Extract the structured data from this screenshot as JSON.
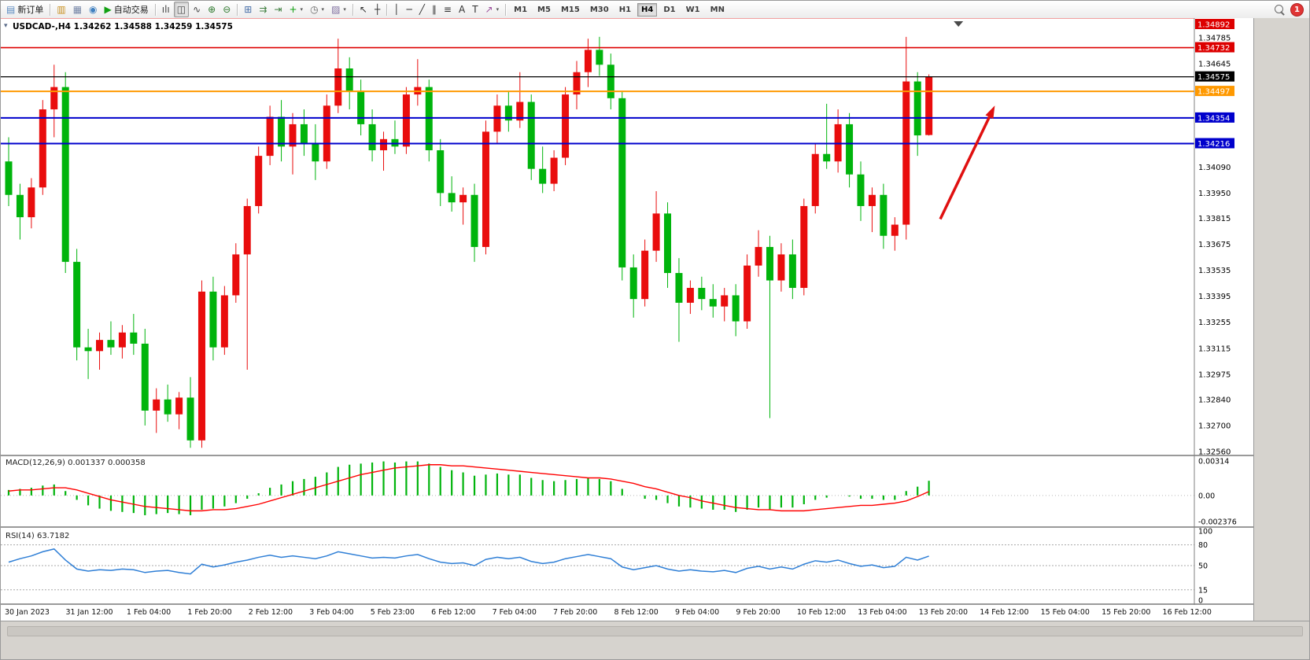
{
  "window": {
    "title": "USDCAD-,H4 1.34262 1.34588 1.34259 1.34575",
    "one_click_glyph": "▾"
  },
  "toolbar": {
    "timeframes": [
      "M1",
      "M5",
      "M15",
      "M30",
      "H1",
      "H4",
      "D1",
      "W1",
      "MN"
    ],
    "active_timeframe": "H4",
    "notification_count": "1",
    "items": [
      {
        "t": "btn",
        "name": "new-order-button",
        "icon": "new-order-icon",
        "glyph": "▤",
        "gc": "#5a8ac0",
        "label": "新订单"
      },
      {
        "t": "sep"
      },
      {
        "t": "btn",
        "name": "market-watch-button",
        "icon": "market-watch-icon",
        "glyph": "▥",
        "gc": "#c89020"
      },
      {
        "t": "btn",
        "name": "data-window-button",
        "icon": "data-window-icon",
        "glyph": "▦",
        "gc": "#7888a8"
      },
      {
        "t": "btn",
        "name": "navigator-button",
        "icon": "navigator-icon",
        "glyph": "◉",
        "gc": "#4080c0"
      },
      {
        "t": "btn",
        "name": "autotrading-button",
        "icon": "autotrading-play-icon",
        "glyph": "▶",
        "gc": "#12a012",
        "label": "自动交易"
      },
      {
        "t": "sep"
      },
      {
        "t": "btn",
        "name": "bar-chart-button",
        "icon": "bar-chart-icon",
        "glyph": "ılı",
        "gc": "#444444"
      },
      {
        "t": "btn",
        "name": "candlestick-chart-button",
        "icon": "candlestick-chart-icon",
        "glyph": "◫",
        "gc": "#444444",
        "active": true
      },
      {
        "t": "btn",
        "name": "line-chart-button",
        "icon": "line-chart-icon",
        "glyph": "∿",
        "gc": "#444444"
      },
      {
        "t": "btn",
        "name": "zoom-in-button",
        "icon": "zoom-in-icon",
        "glyph": "⊕",
        "gc": "#2f7a2f"
      },
      {
        "t": "btn",
        "name": "zoom-out-button",
        "icon": "zoom-out-icon",
        "glyph": "⊖",
        "gc": "#2f7a2f"
      },
      {
        "t": "sep"
      },
      {
        "t": "btn",
        "name": "tile-windows-button",
        "icon": "tile-windows-icon",
        "glyph": "⊞",
        "gc": "#486fa8"
      },
      {
        "t": "btn",
        "name": "auto-scroll-button",
        "icon": "auto-scroll-icon",
        "glyph": "⇉",
        "gc": "#3f7f3f"
      },
      {
        "t": "btn",
        "name": "chart-shift-button",
        "icon": "chart-shift-icon",
        "glyph": "⇥",
        "gc": "#3f7f3f"
      },
      {
        "t": "btn",
        "name": "indicators-button",
        "icon": "add-indicator-icon",
        "glyph": "+",
        "gc": "#0f9f0f",
        "caret": true
      },
      {
        "t": "btn",
        "name": "periods-button",
        "icon": "clock-icon",
        "glyph": "◷",
        "gc": "#666666",
        "caret": true
      },
      {
        "t": "btn",
        "name": "templates-button",
        "icon": "template-icon",
        "glyph": "▨",
        "gc": "#8070a0",
        "caret": true
      },
      {
        "t": "sep"
      },
      {
        "t": "btn",
        "name": "cursor-button",
        "icon": "cursor-icon",
        "glyph": "↖",
        "gc": "#303030"
      },
      {
        "t": "btn",
        "name": "crosshair-button",
        "icon": "crosshair-icon",
        "glyph": "┼",
        "gc": "#303030"
      },
      {
        "t": "sep"
      },
      {
        "t": "btn",
        "name": "vertical-line-button",
        "icon": "vertical-line-icon",
        "glyph": "│",
        "gc": "#303030"
      },
      {
        "t": "btn",
        "name": "horizontal-line-button",
        "icon": "horizontal-line-icon",
        "glyph": "─",
        "gc": "#303030"
      },
      {
        "t": "btn",
        "name": "trendline-button",
        "icon": "trendline-icon",
        "glyph": "╱",
        "gc": "#303030"
      },
      {
        "t": "btn",
        "name": "channel-button",
        "icon": "channel-icon",
        "glyph": "∥",
        "gc": "#303030"
      },
      {
        "t": "btn",
        "name": "fibonacci-button",
        "icon": "fibonacci-icon",
        "glyph": "≡",
        "gc": "#303030"
      },
      {
        "t": "btn",
        "name": "text-button",
        "icon": "text-icon",
        "glyph": "A",
        "gc": "#303030"
      },
      {
        "t": "btn",
        "name": "text-label-button",
        "icon": "text-label-icon",
        "glyph": "T",
        "gc": "#303030"
      },
      {
        "t": "btn",
        "name": "arrows-button",
        "icon": "arrow-objects-icon",
        "glyph": "↗",
        "gc": "#9a4a9a",
        "caret": true
      },
      {
        "t": "sep"
      }
    ]
  },
  "chart_data": {
    "type": "candlestick",
    "symbol": "USDCAD-",
    "period": "H4",
    "ohlc": {
      "open": "1.34262",
      "high": "1.34588",
      "low": "1.34259",
      "close": "1.34575"
    },
    "colors": {
      "bull": "#e90d0d",
      "bear": "#00b40c",
      "macd_hist": "#00b40c",
      "macd_signal": "#ff0000",
      "rsi": "#2f7fd6",
      "hline_red": "#dd0000",
      "hline_orange": "#ff9900",
      "hline_blue": "#0000cc",
      "hline_black": "#000000"
    },
    "price_axis": {
      "labels": [
        "1.34785",
        "1.34645",
        "1.34505",
        "1.34365",
        "1.34225",
        "1.34090",
        "1.33950",
        "1.33815",
        "1.33675",
        "1.33535",
        "1.33395",
        "1.33255",
        "1.33115",
        "1.32975",
        "1.32840",
        "1.32700",
        "1.32560"
      ]
    },
    "hlines": [
      {
        "price": 1.34892,
        "color": "#dd0000",
        "width": 1.4
      },
      {
        "price": 1.34732,
        "color": "#dd0000",
        "width": 1.6
      },
      {
        "price": 1.34575,
        "color": "#000000",
        "width": 1.2
      },
      {
        "price": 1.34497,
        "color": "#ff9900",
        "width": 2
      },
      {
        "price": 1.34354,
        "color": "#0000cc",
        "width": 2
      },
      {
        "price": 1.34216,
        "color": "#0000cc",
        "width": 2
      }
    ],
    "candles": [
      [
        1.3412,
        1.3425,
        1.3388,
        1.3394
      ],
      [
        1.3394,
        1.34,
        1.337,
        1.3382
      ],
      [
        1.3382,
        1.3403,
        1.3376,
        1.3398
      ],
      [
        1.3398,
        1.3445,
        1.3394,
        1.344
      ],
      [
        1.344,
        1.3464,
        1.3425,
        1.3452
      ],
      [
        1.3452,
        1.346,
        1.3352,
        1.3358
      ],
      [
        1.3358,
        1.3365,
        1.3305,
        1.3312
      ],
      [
        1.3312,
        1.3322,
        1.3295,
        1.331
      ],
      [
        1.331,
        1.332,
        1.33,
        1.3316
      ],
      [
        1.3316,
        1.3326,
        1.3308,
        1.3312
      ],
      [
        1.3312,
        1.3324,
        1.3306,
        1.332
      ],
      [
        1.332,
        1.333,
        1.3308,
        1.3314
      ],
      [
        1.3314,
        1.3322,
        1.327,
        1.3278
      ],
      [
        1.3278,
        1.329,
        1.3266,
        1.3284
      ],
      [
        1.3284,
        1.3292,
        1.3272,
        1.3276
      ],
      [
        1.3276,
        1.3288,
        1.3268,
        1.3285
      ],
      [
        1.3285,
        1.3296,
        1.3258,
        1.3262
      ],
      [
        1.3262,
        1.3348,
        1.3258,
        1.3342
      ],
      [
        1.3342,
        1.335,
        1.3305,
        1.3312
      ],
      [
        1.3312,
        1.3345,
        1.3308,
        1.334
      ],
      [
        1.334,
        1.3368,
        1.3336,
        1.3362
      ],
      [
        1.3362,
        1.3392,
        1.33,
        1.3388
      ],
      [
        1.3388,
        1.342,
        1.3384,
        1.3415
      ],
      [
        1.3415,
        1.3442,
        1.341,
        1.3436
      ],
      [
        1.3436,
        1.3445,
        1.3412,
        1.342
      ],
      [
        1.342,
        1.3438,
        1.3405,
        1.3432
      ],
      [
        1.3432,
        1.344,
        1.3415,
        1.3422
      ],
      [
        1.3422,
        1.3432,
        1.3402,
        1.3412
      ],
      [
        1.3412,
        1.3448,
        1.3408,
        1.3442
      ],
      [
        1.3442,
        1.3478,
        1.3438,
        1.3462
      ],
      [
        1.3462,
        1.3468,
        1.344,
        1.345
      ],
      [
        1.345,
        1.3456,
        1.3426,
        1.3432
      ],
      [
        1.3432,
        1.344,
        1.3412,
        1.3418
      ],
      [
        1.3418,
        1.3428,
        1.3407,
        1.3424
      ],
      [
        1.3424,
        1.3434,
        1.3416,
        1.342
      ],
      [
        1.342,
        1.3452,
        1.3416,
        1.3448
      ],
      [
        1.3448,
        1.3467,
        1.3442,
        1.3452
      ],
      [
        1.3452,
        1.3456,
        1.3412,
        1.3418
      ],
      [
        1.3418,
        1.3424,
        1.3388,
        1.3395
      ],
      [
        1.3395,
        1.3404,
        1.3385,
        1.339
      ],
      [
        1.339,
        1.3398,
        1.3378,
        1.3394
      ],
      [
        1.3394,
        1.34,
        1.3358,
        1.3366
      ],
      [
        1.3366,
        1.3434,
        1.3362,
        1.3428
      ],
      [
        1.3428,
        1.3448,
        1.3422,
        1.3442
      ],
      [
        1.3442,
        1.345,
        1.3428,
        1.3434
      ],
      [
        1.3434,
        1.346,
        1.343,
        1.3444
      ],
      [
        1.3444,
        1.3448,
        1.3402,
        1.3408
      ],
      [
        1.3408,
        1.342,
        1.3395,
        1.34
      ],
      [
        1.34,
        1.3418,
        1.3396,
        1.3414
      ],
      [
        1.3414,
        1.3452,
        1.341,
        1.3448
      ],
      [
        1.3448,
        1.3466,
        1.344,
        1.346
      ],
      [
        1.346,
        1.3478,
        1.3452,
        1.3472
      ],
      [
        1.3472,
        1.3479,
        1.3458,
        1.3464
      ],
      [
        1.3464,
        1.347,
        1.344,
        1.3446
      ],
      [
        1.3446,
        1.345,
        1.3348,
        1.3355
      ],
      [
        1.3355,
        1.3362,
        1.3328,
        1.3338
      ],
      [
        1.3338,
        1.337,
        1.3334,
        1.3364
      ],
      [
        1.3364,
        1.3396,
        1.3358,
        1.3384
      ],
      [
        1.3384,
        1.339,
        1.3344,
        1.3352
      ],
      [
        1.3352,
        1.336,
        1.3315,
        1.3336
      ],
      [
        1.3336,
        1.3348,
        1.333,
        1.3344
      ],
      [
        1.3344,
        1.335,
        1.3332,
        1.3338
      ],
      [
        1.3338,
        1.3346,
        1.3328,
        1.3334
      ],
      [
        1.3334,
        1.3344,
        1.3326,
        1.334
      ],
      [
        1.334,
        1.3346,
        1.3318,
        1.3326
      ],
      [
        1.3326,
        1.3362,
        1.3322,
        1.3356
      ],
      [
        1.3356,
        1.3375,
        1.335,
        1.3366
      ],
      [
        1.3366,
        1.3372,
        1.3274,
        1.3348
      ],
      [
        1.3348,
        1.3368,
        1.3342,
        1.3362
      ],
      [
        1.3362,
        1.337,
        1.3338,
        1.3344
      ],
      [
        1.3344,
        1.3392,
        1.334,
        1.3388
      ],
      [
        1.3388,
        1.3422,
        1.3384,
        1.3416
      ],
      [
        1.3416,
        1.3443,
        1.3408,
        1.3412
      ],
      [
        1.3412,
        1.344,
        1.3406,
        1.3432
      ],
      [
        1.3432,
        1.3438,
        1.3398,
        1.3405
      ],
      [
        1.3405,
        1.3412,
        1.338,
        1.3388
      ],
      [
        1.3388,
        1.3398,
        1.3374,
        1.3394
      ],
      [
        1.3394,
        1.34,
        1.3365,
        1.3372
      ],
      [
        1.3372,
        1.3382,
        1.3364,
        1.3378
      ],
      [
        1.3378,
        1.3479,
        1.337,
        1.3455
      ],
      [
        1.3455,
        1.346,
        1.3415,
        1.3426
      ],
      [
        1.34262,
        1.34588,
        1.34259,
        1.34575
      ]
    ],
    "time_labels": [
      "30 Jan 2023",
      "31 Jan 12:00",
      "1 Feb 04:00",
      "1 Feb 20:00",
      "2 Feb 12:00",
      "3 Feb 04:00",
      "5 Feb 23:00",
      "6 Feb 12:00",
      "7 Feb 04:00",
      "7 Feb 20:00",
      "8 Feb 12:00",
      "9 Feb 04:00",
      "9 Feb 20:00",
      "10 Feb 12:00",
      "13 Feb 04:00",
      "13 Feb 20:00",
      "14 Feb 12:00",
      "15 Feb 04:00",
      "15 Feb 20:00",
      "16 Feb 12:00"
    ],
    "macd": {
      "label": "MACD(12,26,9) 0.001337 0.000358",
      "name": "MACD(12,26,9)",
      "main_value": "0.001337",
      "signal_value": "0.000358",
      "max": 0.00314,
      "min": -0.002376,
      "axis": [
        "0.00314",
        "0.00",
        "-0.002376"
      ],
      "hist": [
        0.0005,
        0.0006,
        0.0007,
        0.0009,
        0.001,
        0.0004,
        -0.0004,
        -0.0009,
        -0.0012,
        -0.0014,
        -0.0015,
        -0.0016,
        -0.0018,
        -0.0017,
        -0.0016,
        -0.0017,
        -0.0018,
        -0.0013,
        -0.0012,
        -0.001,
        -0.0007,
        -0.0003,
        0.0002,
        0.0007,
        0.001,
        0.0013,
        0.0015,
        0.0017,
        0.0021,
        0.0026,
        0.0028,
        0.0029,
        0.003,
        0.0031,
        0.003,
        0.0031,
        0.0031,
        0.0029,
        0.0026,
        0.0023,
        0.0021,
        0.0018,
        0.0019,
        0.002,
        0.0019,
        0.0019,
        0.0016,
        0.0014,
        0.0013,
        0.0014,
        0.0015,
        0.0016,
        0.0015,
        0.0013,
        0.0006,
        0.0,
        -0.0003,
        -0.0004,
        -0.0007,
        -0.001,
        -0.0011,
        -0.0012,
        -0.0013,
        -0.0013,
        -0.0015,
        -0.0013,
        -0.0011,
        -0.0013,
        -0.0011,
        -0.0011,
        -0.0008,
        -0.0004,
        -0.0002,
        0.0,
        -0.0001,
        -0.0003,
        -0.0003,
        -0.0004,
        -0.0004,
        0.0004,
        0.0008,
        0.001337
      ],
      "signal": [
        0.0004,
        0.0005,
        0.0005,
        0.0006,
        0.0007,
        0.0007,
        0.0005,
        0.0002,
        -0.0001,
        -0.0004,
        -0.0006,
        -0.0008,
        -0.001,
        -0.0011,
        -0.0012,
        -0.0013,
        -0.0014,
        -0.0014,
        -0.0013,
        -0.0013,
        -0.0012,
        -0.001,
        -0.0008,
        -0.0005,
        -0.0002,
        0.0001,
        0.0004,
        0.0007,
        0.001,
        0.0013,
        0.0016,
        0.0019,
        0.0021,
        0.0023,
        0.0025,
        0.0026,
        0.0027,
        0.0028,
        0.0028,
        0.0027,
        0.0027,
        0.0026,
        0.0025,
        0.0024,
        0.0023,
        0.0022,
        0.0021,
        0.002,
        0.0019,
        0.0018,
        0.0017,
        0.0016,
        0.0016,
        0.0015,
        0.0013,
        0.0011,
        0.0008,
        0.0006,
        0.0003,
        0.0,
        -0.0002,
        -0.0005,
        -0.0007,
        -0.0009,
        -0.0011,
        -0.0012,
        -0.0013,
        -0.0013,
        -0.0014,
        -0.0014,
        -0.0014,
        -0.0013,
        -0.0012,
        -0.0011,
        -0.001,
        -0.0009,
        -0.0009,
        -0.0008,
        -0.0007,
        -0.0005,
        -0.0001,
        0.000358
      ]
    },
    "rsi": {
      "label": "RSI(14) 63.7182",
      "name": "RSI(14)",
      "value": "63.7182",
      "levels": [
        80,
        50,
        15
      ],
      "axis": [
        "100",
        "80",
        "50",
        "15",
        "0"
      ],
      "values": [
        55,
        60,
        64,
        70,
        74,
        58,
        45,
        42,
        44,
        43,
        45,
        44,
        40,
        42,
        43,
        40,
        38,
        52,
        48,
        51,
        55,
        58,
        62,
        65,
        62,
        64,
        62,
        60,
        64,
        70,
        67,
        64,
        61,
        62,
        61,
        64,
        66,
        60,
        55,
        53,
        54,
        50,
        59,
        62,
        60,
        62,
        56,
        53,
        55,
        60,
        63,
        66,
        63,
        60,
        48,
        44,
        47,
        50,
        45,
        42,
        44,
        42,
        41,
        43,
        40,
        46,
        49,
        45,
        48,
        45,
        52,
        57,
        55,
        58,
        53,
        49,
        51,
        47,
        49,
        62,
        58,
        63.7
      ]
    },
    "arrow": {
      "from_bar": 82,
      "from_price": 1.3381,
      "to_bar": 86.8,
      "to_price": 1.3442,
      "color": "#e01010",
      "width": 3.5
    },
    "shift_marker_bar": 83.6
  }
}
